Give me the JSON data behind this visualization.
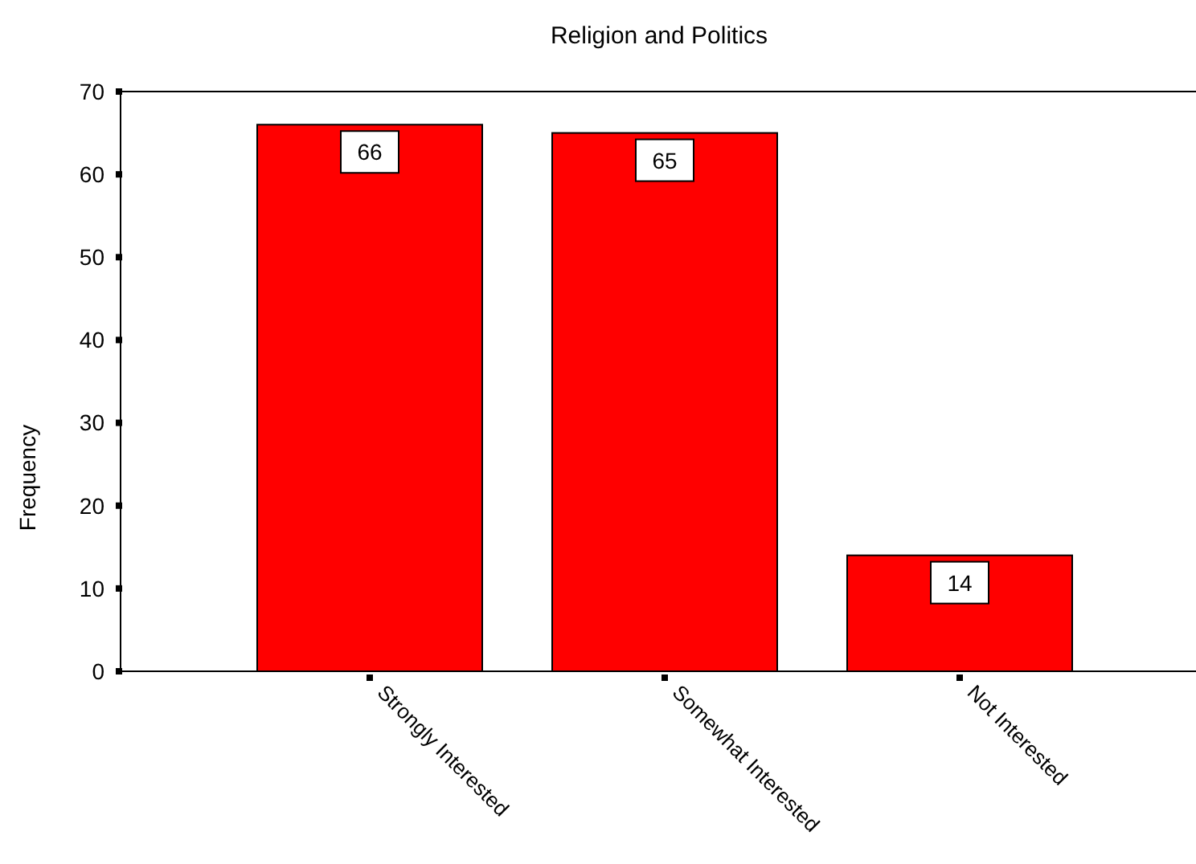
{
  "chart_data": {
    "type": "bar",
    "title": "Religion and Politics",
    "ylabel": "Frequency",
    "categories": [
      "Strongly Interested",
      "Somewhat Interested",
      "Not Interested"
    ],
    "values": [
      66,
      65,
      14
    ],
    "color": "#ff0000",
    "ylim": [
      0,
      70
    ],
    "yticks": [
      0,
      10,
      20,
      30,
      40,
      50,
      60,
      70
    ],
    "data_labels": true,
    "grid": false
  }
}
